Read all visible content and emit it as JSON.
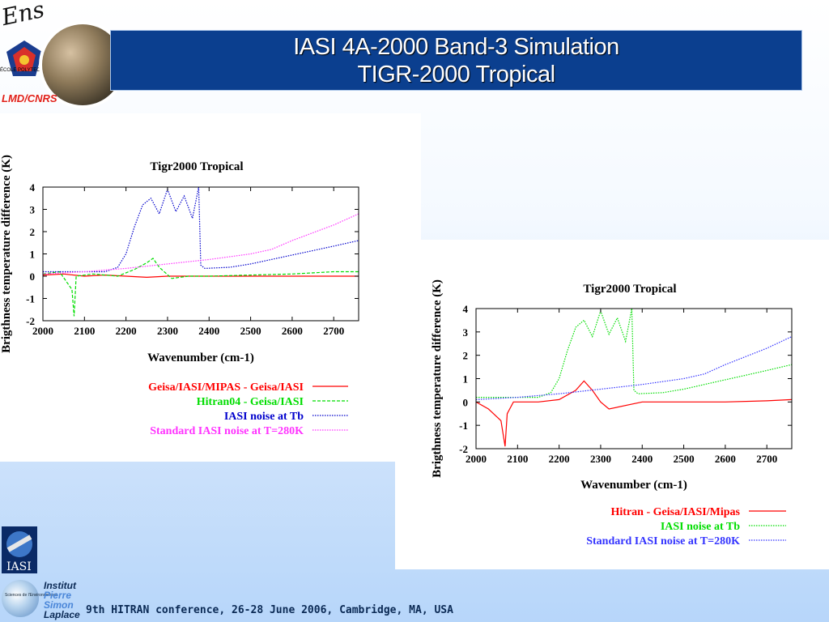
{
  "slide": {
    "title_line1": "IASI 4A-2000 Band-3 Simulation",
    "title_line2": "TIGR-2000 Tropical",
    "footer": "9th HITRAN conference, 26-28 June 2006, Cambridge, MA, USA"
  },
  "logos": {
    "ens": "Ens",
    "polytechnique": "ÉCOLE POLYTECHNIQUE",
    "lmd": "LMD/CNRS",
    "iasi": "IASI",
    "ipsl_mini": "Sciences de l'Environnement",
    "ipsl_line1": "Institut",
    "ipsl_line2": "Pierre",
    "ipsl_line3": "Simon",
    "ipsl_line4": "Laplace",
    "icons": [
      "ens-logo",
      "polytechnique-logo",
      "globe-logo",
      "lmd-logo",
      "iasi-logo",
      "ipsl-logo"
    ]
  },
  "chart_data": [
    {
      "type": "line",
      "title": "Tigr2000 Tropical",
      "xlabel": "Wavenumber (cm-1)",
      "ylabel": "Brigthness temperature difference (K)",
      "xlim": [
        2000,
        2760
      ],
      "ylim": [
        -2,
        4
      ],
      "xticks": [
        2000,
        2100,
        2200,
        2300,
        2400,
        2500,
        2600,
        2700
      ],
      "yticks": [
        4,
        3,
        2,
        1,
        0,
        -1,
        -2
      ],
      "grid": false,
      "legend": "bottom-right below plot",
      "series": [
        {
          "name": "Geisa/IASI/MIPAS - Geisa/IASI",
          "color": "#ff0000",
          "style": "solid",
          "x": [
            2000,
            2050,
            2100,
            2150,
            2200,
            2250,
            2300,
            2350,
            2400,
            2500,
            2600,
            2700,
            2760
          ],
          "y": [
            0.05,
            0.1,
            0.0,
            0.05,
            0.0,
            -0.05,
            0.0,
            0.0,
            0.0,
            0.0,
            0.0,
            0.0,
            0.0
          ]
        },
        {
          "name": "Hitran04 - Geisa/IASI",
          "color": "#00dd00",
          "style": "dashed",
          "x": [
            2000,
            2040,
            2070,
            2075,
            2080,
            2120,
            2180,
            2220,
            2250,
            2265,
            2280,
            2310,
            2350,
            2400,
            2500,
            2600,
            2700,
            2760
          ],
          "y": [
            0.1,
            0.2,
            -0.6,
            -1.8,
            0.0,
            0.1,
            0.0,
            0.3,
            0.6,
            0.8,
            0.4,
            -0.1,
            0.0,
            0.0,
            0.05,
            0.1,
            0.2,
            0.2
          ]
        },
        {
          "name": "IASI noise at Tb",
          "color": "#0000cc",
          "style": "dotted",
          "x": [
            2000,
            2050,
            2100,
            2150,
            2180,
            2200,
            2220,
            2240,
            2260,
            2280,
            2300,
            2320,
            2340,
            2360,
            2375,
            2380,
            2390,
            2450,
            2500,
            2550,
            2600,
            2650,
            2700,
            2760
          ],
          "y": [
            0.2,
            0.2,
            0.2,
            0.2,
            0.4,
            1.0,
            2.2,
            3.2,
            3.5,
            2.8,
            3.9,
            2.9,
            3.6,
            2.6,
            4.0,
            0.5,
            0.35,
            0.4,
            0.55,
            0.75,
            0.95,
            1.15,
            1.35,
            1.6
          ]
        },
        {
          "name": "Standard IASI noise at T=280K",
          "color": "#ff33ff",
          "style": "dotted",
          "x": [
            2000,
            2100,
            2200,
            2300,
            2400,
            2500,
            2550,
            2600,
            2700,
            2760
          ],
          "y": [
            0.1,
            0.2,
            0.35,
            0.55,
            0.75,
            1.0,
            1.2,
            1.6,
            2.3,
            2.8
          ]
        }
      ]
    },
    {
      "type": "line",
      "title": "Tigr2000 Tropical",
      "xlabel": "Wavenumber (cm-1)",
      "ylabel": "Brigthness temperature difference (K)",
      "xlim": [
        2000,
        2760
      ],
      "ylim": [
        -2,
        4
      ],
      "xticks": [
        2000,
        2100,
        2200,
        2300,
        2400,
        2500,
        2600,
        2700
      ],
      "yticks": [
        4,
        3,
        2,
        1,
        0,
        -1,
        -2
      ],
      "grid": false,
      "legend": "bottom-right below plot",
      "series": [
        {
          "name": "Hitran - Geisa/IASI/Mipas",
          "color": "#ff0000",
          "style": "solid",
          "x": [
            2000,
            2030,
            2060,
            2070,
            2075,
            2090,
            2150,
            2200,
            2240,
            2260,
            2280,
            2300,
            2320,
            2400,
            2500,
            2600,
            2700,
            2760
          ],
          "y": [
            0.0,
            -0.3,
            -0.8,
            -1.9,
            -0.5,
            0.0,
            0.0,
            0.1,
            0.5,
            0.9,
            0.5,
            0.0,
            -0.3,
            0.0,
            0.0,
            0.0,
            0.05,
            0.1
          ]
        },
        {
          "name": "IASI noise at Tb",
          "color": "#00dd00",
          "style": "dotted",
          "x": [
            2000,
            2050,
            2100,
            2150,
            2180,
            2200,
            2220,
            2240,
            2260,
            2280,
            2300,
            2320,
            2340,
            2360,
            2375,
            2380,
            2390,
            2450,
            2500,
            2550,
            2600,
            2650,
            2700,
            2760
          ],
          "y": [
            0.2,
            0.2,
            0.2,
            0.2,
            0.4,
            1.0,
            2.2,
            3.2,
            3.5,
            2.8,
            3.9,
            2.9,
            3.6,
            2.6,
            4.0,
            0.5,
            0.35,
            0.4,
            0.55,
            0.75,
            0.95,
            1.15,
            1.35,
            1.6
          ]
        },
        {
          "name": "Standard IASI noise at T=280K",
          "color": "#3333ff",
          "style": "dotted",
          "x": [
            2000,
            2100,
            2200,
            2300,
            2400,
            2500,
            2550,
            2600,
            2700,
            2760
          ],
          "y": [
            0.1,
            0.2,
            0.35,
            0.55,
            0.75,
            1.0,
            1.2,
            1.6,
            2.3,
            2.8
          ]
        }
      ]
    }
  ]
}
